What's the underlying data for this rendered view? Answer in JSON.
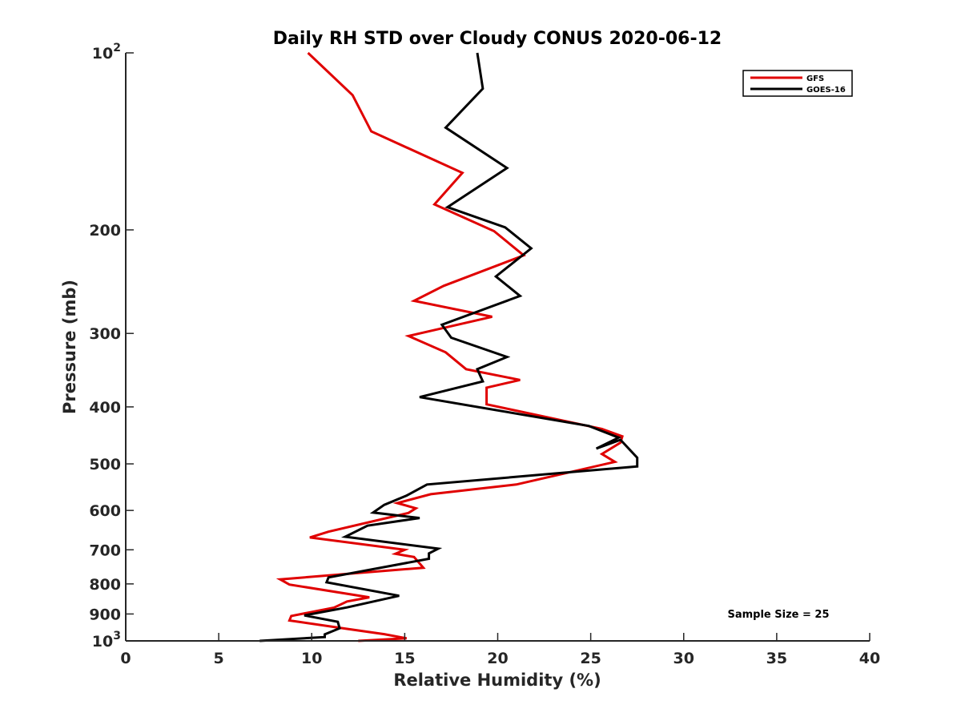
{
  "chart_data": {
    "type": "line",
    "title": "Daily RH STD over Cloudy CONUS 2020-06-12",
    "xlabel": "Relative Humidity (%)",
    "ylabel": "Pressure (mb)",
    "xlim": [
      0,
      40
    ],
    "ylim": [
      100,
      1000
    ],
    "y_scale": "log",
    "y_reversed": true,
    "x_ticks": [
      "0",
      "5",
      "10",
      "15",
      "20",
      "25",
      "30",
      "35",
      "40"
    ],
    "y_ticks": [
      {
        "value": 100,
        "base": "10",
        "exp": "2"
      },
      {
        "value": 200,
        "text": "200"
      },
      {
        "value": 300,
        "text": "300"
      },
      {
        "value": 400,
        "text": "400"
      },
      {
        "value": 500,
        "text": "500"
      },
      {
        "value": 600,
        "text": "600"
      },
      {
        "value": 700,
        "text": "700"
      },
      {
        "value": 800,
        "text": "800"
      },
      {
        "value": 900,
        "text": "900"
      },
      {
        "value": 1000,
        "base": "10",
        "exp": "3"
      }
    ],
    "grid": false,
    "legend_position": "top-right",
    "annotation": "Sample Size = 25",
    "series": [
      {
        "name": "GFS",
        "color": "#e00000",
        "points": [
          [
            9.8,
            100
          ],
          [
            12.2,
            118
          ],
          [
            13.2,
            136
          ],
          [
            18.1,
            160
          ],
          [
            16.6,
            181
          ],
          [
            19.8,
            201
          ],
          [
            21.4,
            221
          ],
          [
            17.1,
            249
          ],
          [
            15.5,
            264
          ],
          [
            19.7,
            281
          ],
          [
            15.2,
            303
          ],
          [
            17.2,
            323
          ],
          [
            18.3,
            345
          ],
          [
            21.2,
            360
          ],
          [
            19.4,
            371
          ],
          [
            19.4,
            396
          ],
          [
            25.6,
            436
          ],
          [
            26.7,
            449
          ],
          [
            26.6,
            460
          ],
          [
            25.6,
            481
          ],
          [
            26.3,
            496
          ],
          [
            21.0,
            542
          ],
          [
            16.4,
            563
          ],
          [
            14.6,
            583
          ],
          [
            15.6,
            595
          ],
          [
            15.2,
            606
          ],
          [
            10.9,
            652
          ],
          [
            9.9,
            667
          ],
          [
            15.0,
            700
          ],
          [
            14.5,
            711
          ],
          [
            15.5,
            720
          ],
          [
            16.0,
            751
          ],
          [
            8.3,
            786
          ],
          [
            8.8,
            802
          ],
          [
            13.1,
            843
          ],
          [
            11.9,
            857
          ],
          [
            11.2,
            878
          ],
          [
            8.9,
            907
          ],
          [
            8.8,
            923
          ],
          [
            11.9,
            954
          ],
          [
            13.9,
            974
          ],
          [
            15.1,
            990
          ],
          [
            12.5,
            1000
          ]
        ]
      },
      {
        "name": "GOES-16",
        "color": "#000000",
        "points": [
          [
            18.9,
            100
          ],
          [
            19.2,
            115
          ],
          [
            17.2,
            134
          ],
          [
            20.5,
            157
          ],
          [
            17.3,
            183
          ],
          [
            20.4,
            198
          ],
          [
            21.8,
            215
          ],
          [
            19.9,
            240
          ],
          [
            21.2,
            259
          ],
          [
            17.0,
            290
          ],
          [
            17.5,
            305
          ],
          [
            20.5,
            329
          ],
          [
            18.9,
            345
          ],
          [
            19.2,
            362
          ],
          [
            15.8,
            385
          ],
          [
            24.9,
            431
          ],
          [
            26.5,
            451
          ],
          [
            25.3,
            471
          ],
          [
            26.6,
            455
          ],
          [
            27.5,
            488
          ],
          [
            27.5,
            505
          ],
          [
            16.2,
            542
          ],
          [
            15.1,
            566
          ],
          [
            13.9,
            587
          ],
          [
            13.3,
            605
          ],
          [
            15.8,
            618
          ],
          [
            13.0,
            637
          ],
          [
            11.8,
            665
          ],
          [
            16.8,
            697
          ],
          [
            16.3,
            710
          ],
          [
            16.3,
            725
          ],
          [
            10.9,
            780
          ],
          [
            10.8,
            795
          ],
          [
            14.7,
            838
          ],
          [
            11.9,
            877
          ],
          [
            9.6,
            905
          ],
          [
            11.4,
            928
          ],
          [
            11.5,
            952
          ],
          [
            10.7,
            975
          ],
          [
            10.7,
            985
          ],
          [
            7.2,
            1000
          ]
        ]
      }
    ]
  }
}
